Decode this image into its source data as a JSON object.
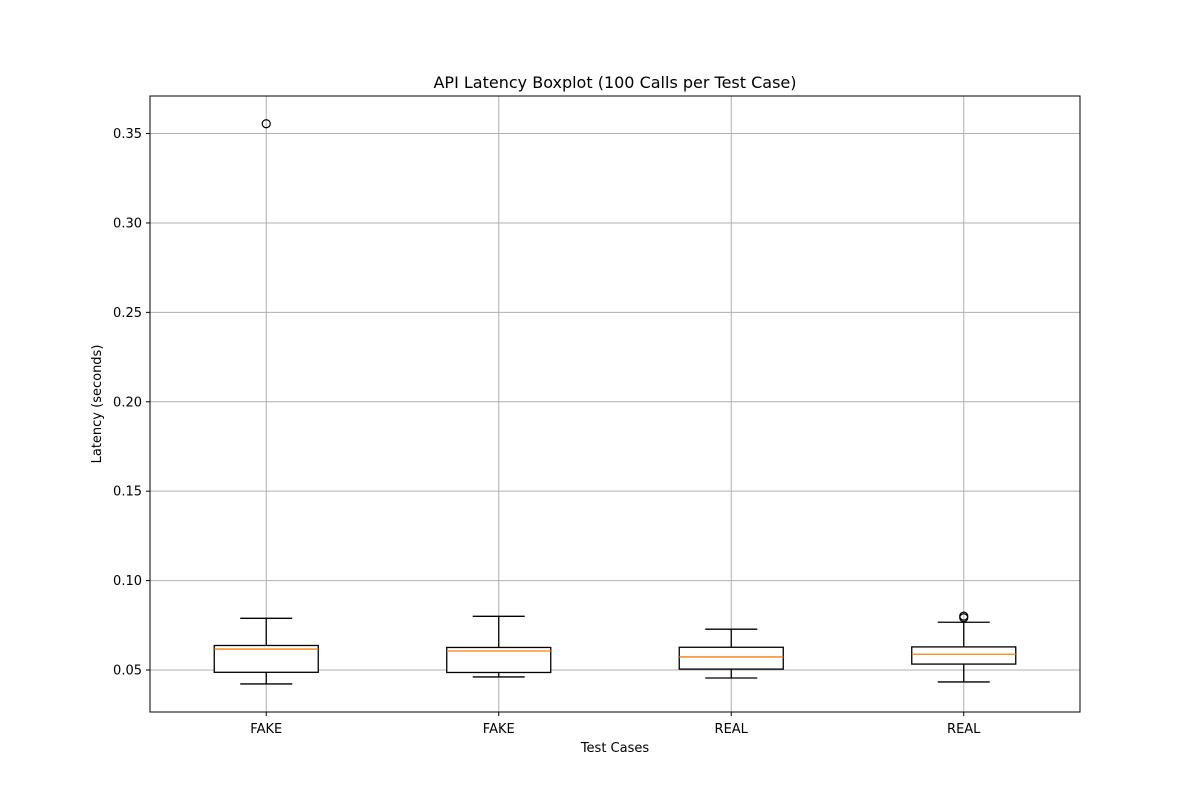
{
  "chart_data": {
    "type": "boxplot",
    "title": "API Latency Boxplot (100 Calls per Test Case)",
    "xlabel": "Test Cases",
    "ylabel": "Latency (seconds)",
    "categories": [
      "FAKE",
      "FAKE",
      "REAL",
      "REAL"
    ],
    "ylim": [
      0.0265,
      0.371
    ],
    "yticks": [
      0.05,
      0.1,
      0.15,
      0.2,
      0.25,
      0.3,
      0.35
    ],
    "ytick_labels": [
      "0.05",
      "0.10",
      "0.15",
      "0.20",
      "0.25",
      "0.30",
      "0.35"
    ],
    "grid": true,
    "boxes": [
      {
        "whisker_low": 0.0422,
        "q1": 0.0487,
        "median": 0.0617,
        "q3": 0.0637,
        "whisker_high": 0.0789,
        "outliers": [
          0.3555
        ]
      },
      {
        "whisker_low": 0.0461,
        "q1": 0.0486,
        "median": 0.0606,
        "q3": 0.0626,
        "whisker_high": 0.08,
        "outliers": []
      },
      {
        "whisker_low": 0.0455,
        "q1": 0.0505,
        "median": 0.0573,
        "q3": 0.0627,
        "whisker_high": 0.0728,
        "outliers": []
      },
      {
        "whisker_low": 0.0433,
        "q1": 0.0533,
        "median": 0.0588,
        "q3": 0.0629,
        "whisker_high": 0.0767,
        "outliers": [
          0.0792,
          0.0801
        ]
      }
    ],
    "colors": {
      "box": "#000000",
      "median": "#ff7f0e",
      "grid": "#b0b0b0"
    }
  }
}
